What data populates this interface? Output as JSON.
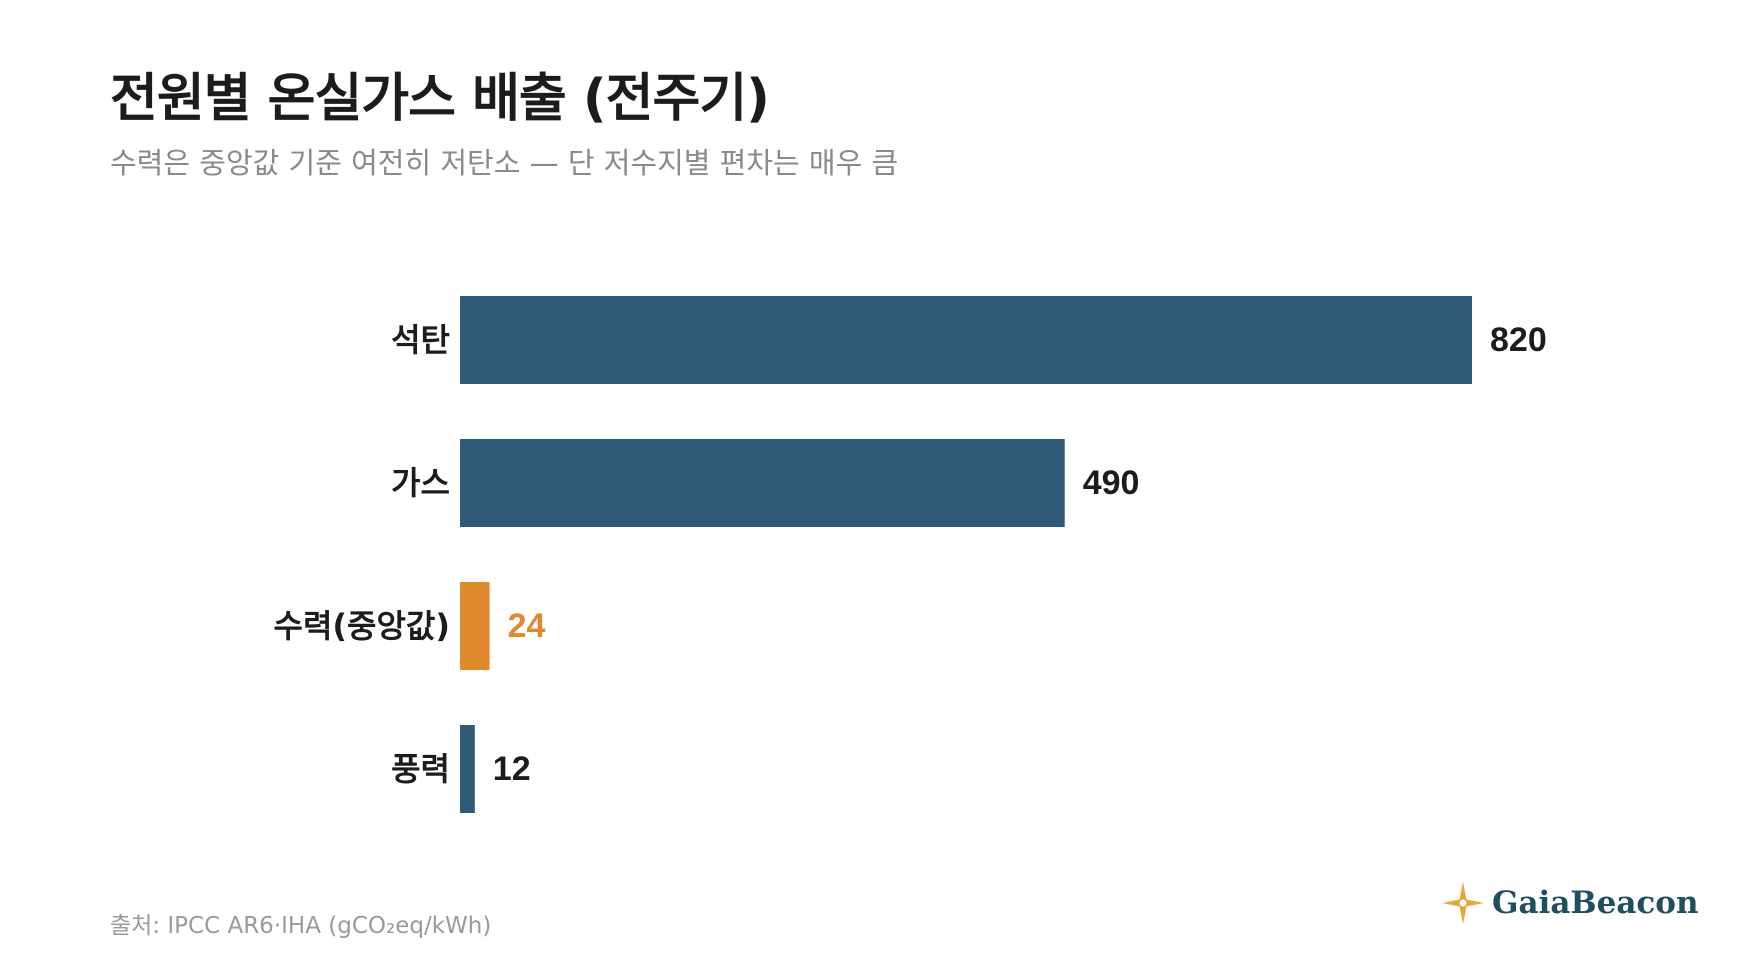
{
  "title": "전원별 온실가스 배출 (전주기)",
  "subtitle": "수력은 중앙값 기준 여전히 저탄소 — 단 저수지별 편차는 매우 큼",
  "source": "출처: IPCC AR6·IHA (gCO₂eq/kWh)",
  "brand": {
    "name": "GaiaBeacon",
    "icon": "star-compass-icon",
    "icon_color": "#e3a73a"
  },
  "colors": {
    "default": "#2e5a78",
    "highlight": "#e08a2e",
    "label": "#1c1c1c"
  },
  "chart_data": {
    "type": "bar",
    "orientation": "horizontal",
    "categories": [
      "석탄",
      "가스",
      "수력(중앙값)",
      "풍력"
    ],
    "values": [
      820,
      490,
      24,
      12
    ],
    "highlight_index": 2,
    "xlim": [
      0,
      820
    ],
    "grid": false,
    "legend": "none"
  }
}
